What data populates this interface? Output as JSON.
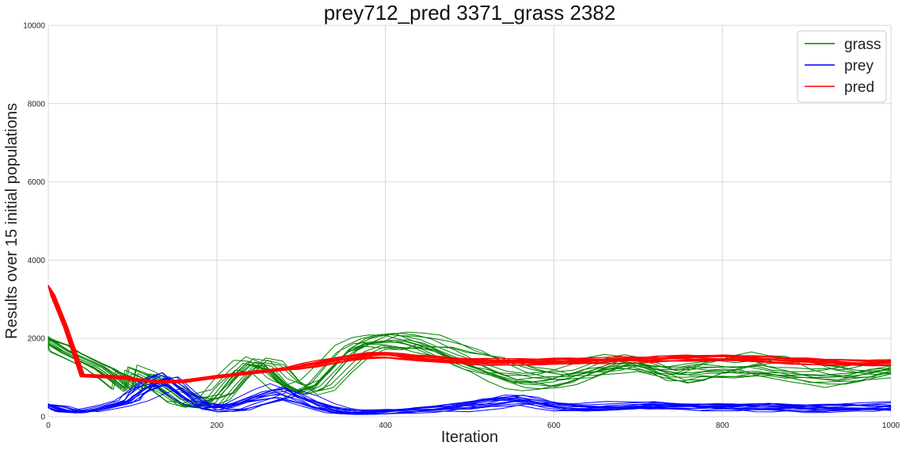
{
  "chart_data": {
    "type": "line",
    "title": "prey712_pred 3371_grass 2382",
    "xlabel": "Iteration",
    "ylabel": "Results over 15 initial populations",
    "xlim": [
      0,
      1000
    ],
    "ylim": [
      0,
      10000
    ],
    "x_ticks": [
      "0",
      "200",
      "400",
      "600",
      "800",
      "1000"
    ],
    "y_ticks": [
      "0",
      "2000",
      "4000",
      "6000",
      "8000",
      "10000"
    ],
    "grid": true,
    "legend_position": "top-right",
    "runs": 15,
    "x": [
      0,
      5,
      20,
      40,
      60,
      80,
      95,
      100,
      120,
      140,
      160,
      180,
      200,
      220,
      240,
      260,
      280,
      300,
      320,
      340,
      360,
      380,
      400,
      420,
      440,
      460,
      480,
      500,
      520,
      540,
      560,
      580,
      600,
      620,
      640,
      660,
      680,
      700,
      720,
      740,
      760,
      780,
      800,
      820,
      840,
      860,
      880,
      900,
      920,
      940,
      960,
      980,
      1000
    ],
    "series": [
      {
        "name": "grass",
        "color": "#008000",
        "values": [
          2000,
          1850,
          1650,
          1450,
          1250,
          950,
          700,
          1150,
          1000,
          750,
          450,
          380,
          500,
          1000,
          1400,
          1300,
          850,
          600,
          750,
          1200,
          1650,
          1850,
          1900,
          1950,
          1900,
          1800,
          1650,
          1500,
          1350,
          1200,
          1050,
          1000,
          950,
          1000,
          1100,
          1200,
          1300,
          1250,
          1150,
          1050,
          1100,
          1200,
          1250,
          1300,
          1350,
          1300,
          1250,
          1150,
          1100,
          1050,
          1050,
          1100,
          1150
        ]
      },
      {
        "name": "prey",
        "color": "#0000ff",
        "values": [
          300,
          250,
          150,
          120,
          200,
          300,
          400,
          500,
          800,
          950,
          600,
          300,
          220,
          250,
          400,
          550,
          650,
          500,
          300,
          180,
          120,
          110,
          130,
          150,
          180,
          200,
          230,
          280,
          350,
          420,
          450,
          380,
          300,
          260,
          240,
          250,
          260,
          280,
          290,
          280,
          260,
          250,
          240,
          230,
          240,
          250,
          240,
          230,
          240,
          250,
          260,
          260,
          270
        ]
      },
      {
        "name": "pred",
        "color": "#ff0000",
        "values": [
          3350,
          3100,
          2300,
          1050,
          1030,
          1010,
          980,
          950,
          900,
          880,
          900,
          960,
          1020,
          1080,
          1130,
          1180,
          1230,
          1300,
          1380,
          1460,
          1520,
          1560,
          1560,
          1520,
          1480,
          1450,
          1420,
          1400,
          1390,
          1390,
          1400,
          1410,
          1420,
          1430,
          1440,
          1450,
          1460,
          1460,
          1470,
          1470,
          1480,
          1480,
          1480,
          1470,
          1460,
          1440,
          1420,
          1410,
          1400,
          1400,
          1390,
          1390,
          1390
        ]
      }
    ]
  }
}
